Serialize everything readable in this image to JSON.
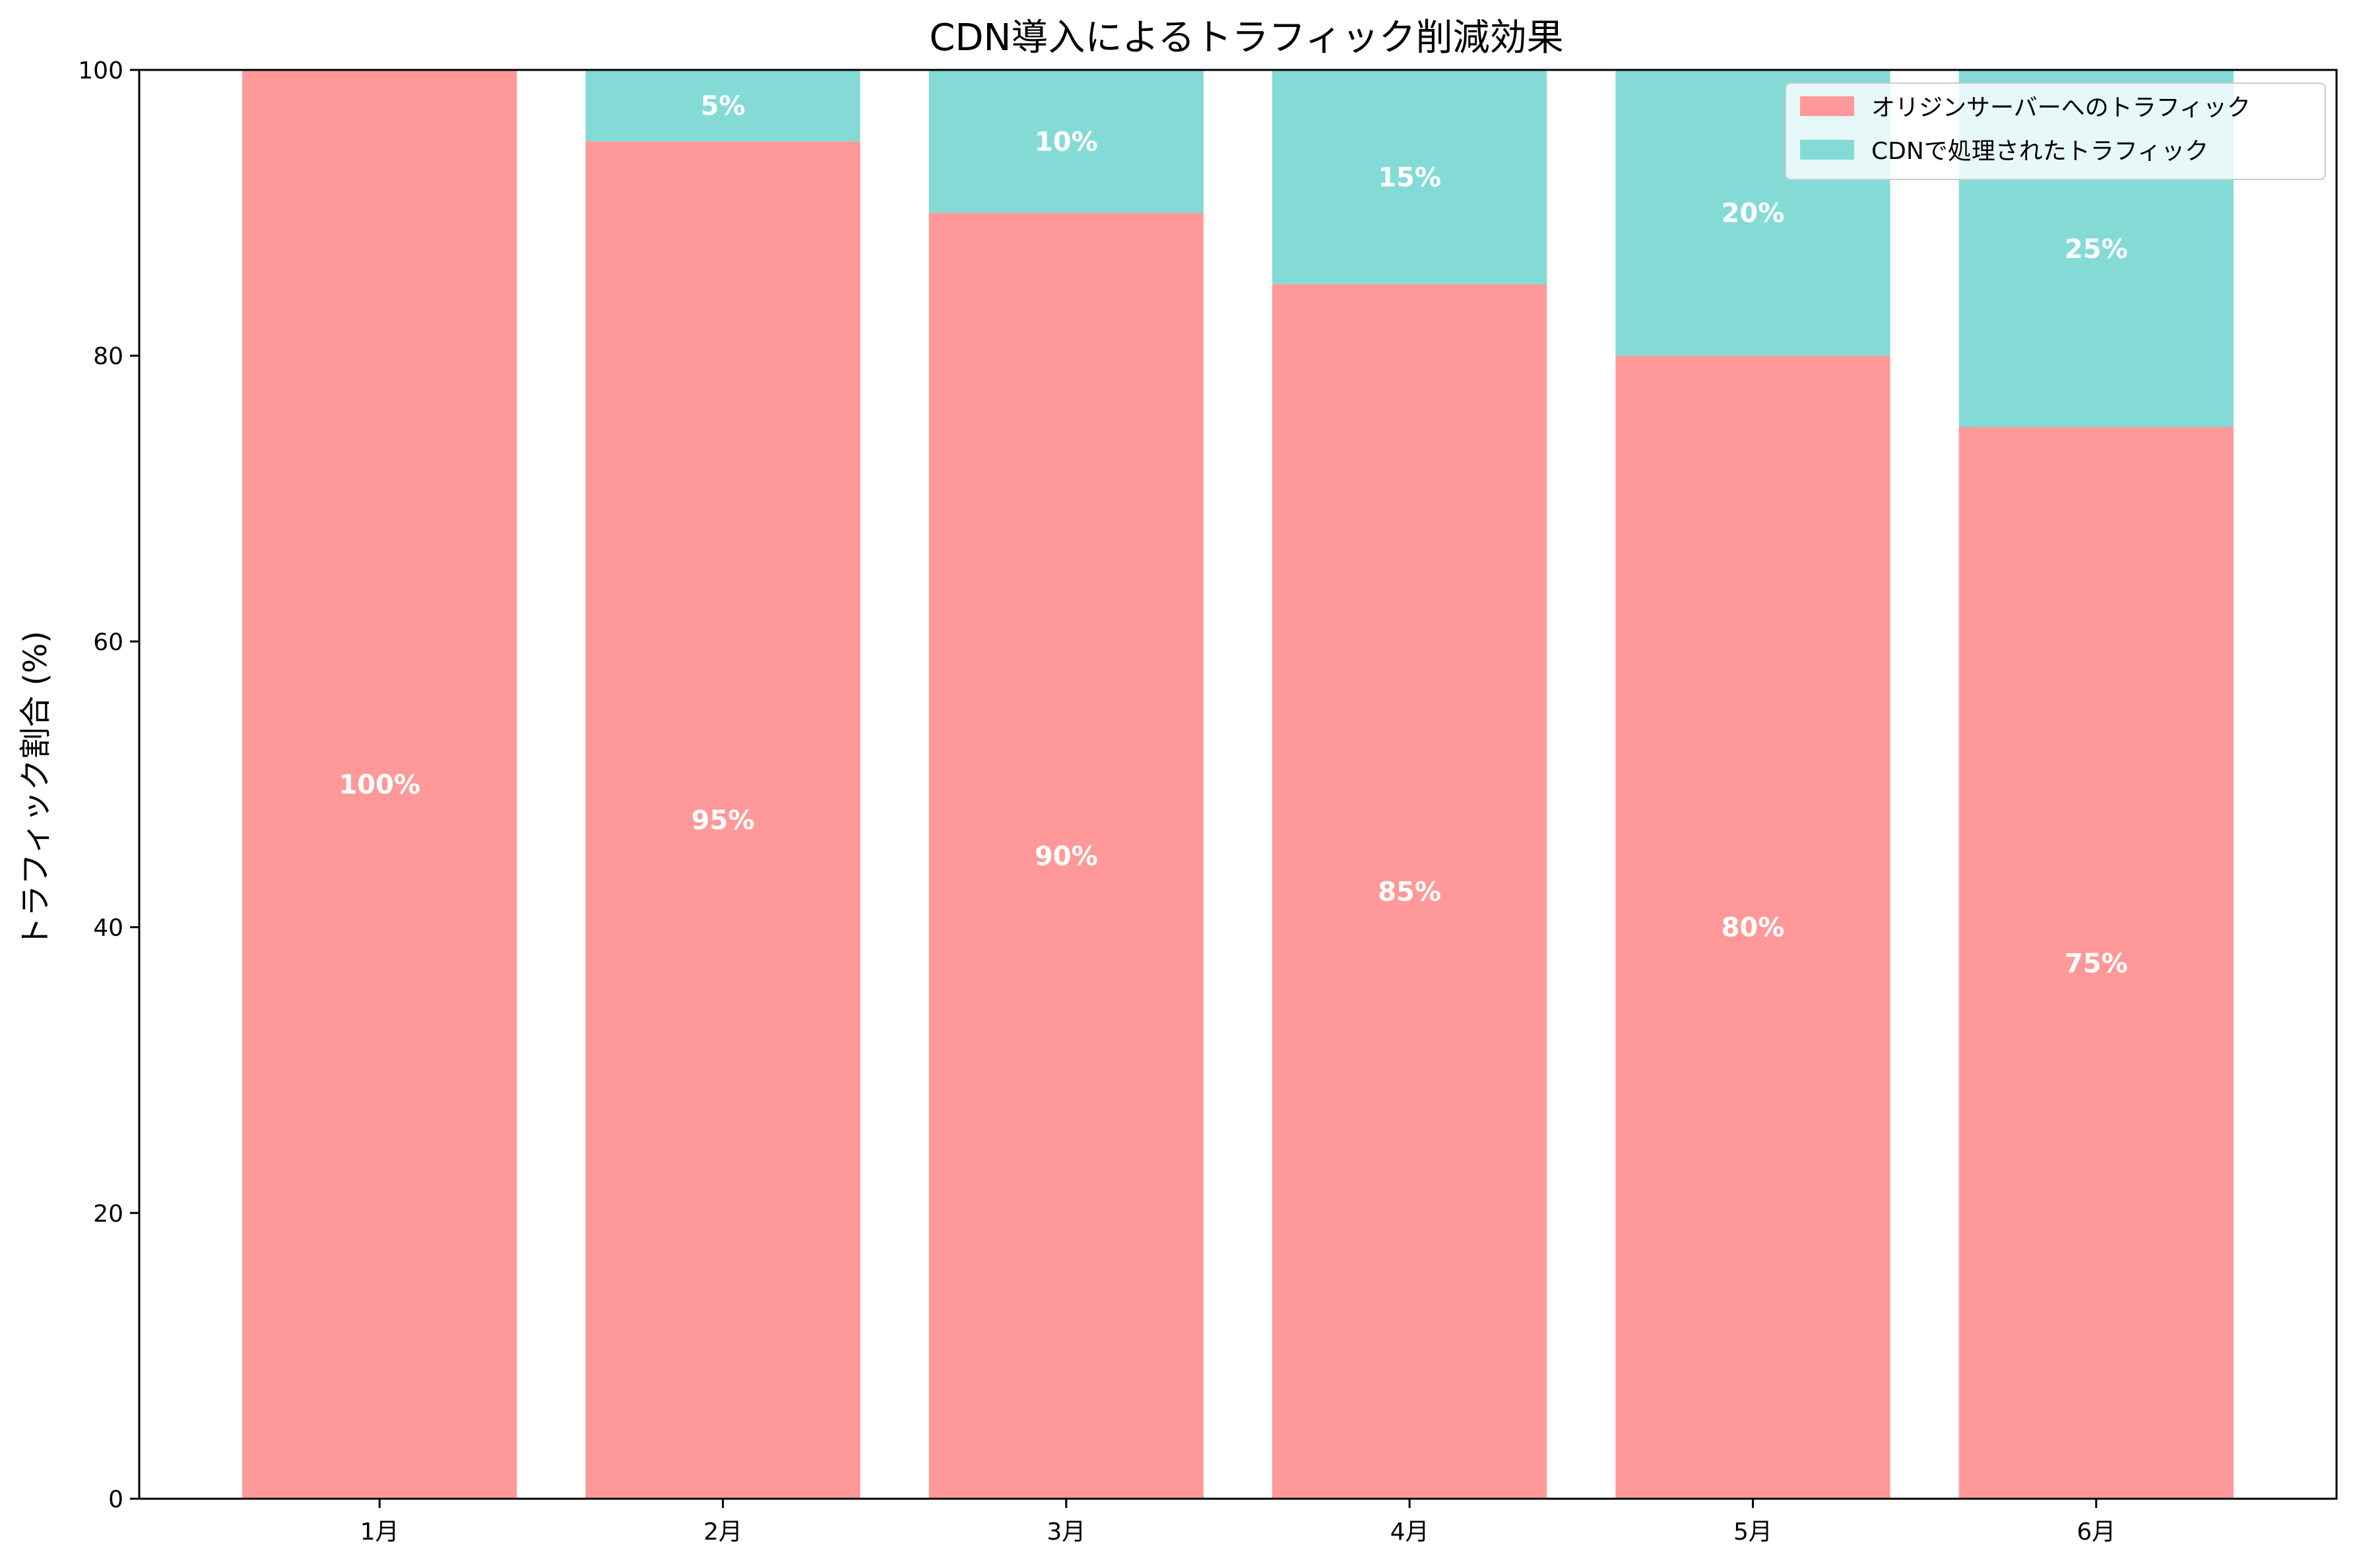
{
  "chart_data": {
    "type": "bar",
    "stacked": true,
    "title": "CDN導入によるトラフィック削減効果",
    "xlabel": "",
    "ylabel": "トラフィック割合 (%)",
    "ylim": [
      0,
      100
    ],
    "yticks": [
      0,
      20,
      40,
      60,
      80,
      100
    ],
    "grid": false,
    "legend_position": "top-right",
    "categories": [
      "1月",
      "2月",
      "3月",
      "4月",
      "5月",
      "6月"
    ],
    "series": [
      {
        "name": "オリジンサーバーへのトラフィック",
        "color": "#ff9999",
        "values": [
          100,
          95,
          90,
          85,
          80,
          75
        ],
        "labels": [
          "100%",
          "95%",
          "90%",
          "85%",
          "80%",
          "75%"
        ]
      },
      {
        "name": "CDNで処理されたトラフィック",
        "color": "#84dbd6",
        "values": [
          0,
          5,
          10,
          15,
          20,
          25
        ],
        "labels": [
          "",
          "5%",
          "10%",
          "15%",
          "20%",
          "25%"
        ]
      }
    ]
  }
}
